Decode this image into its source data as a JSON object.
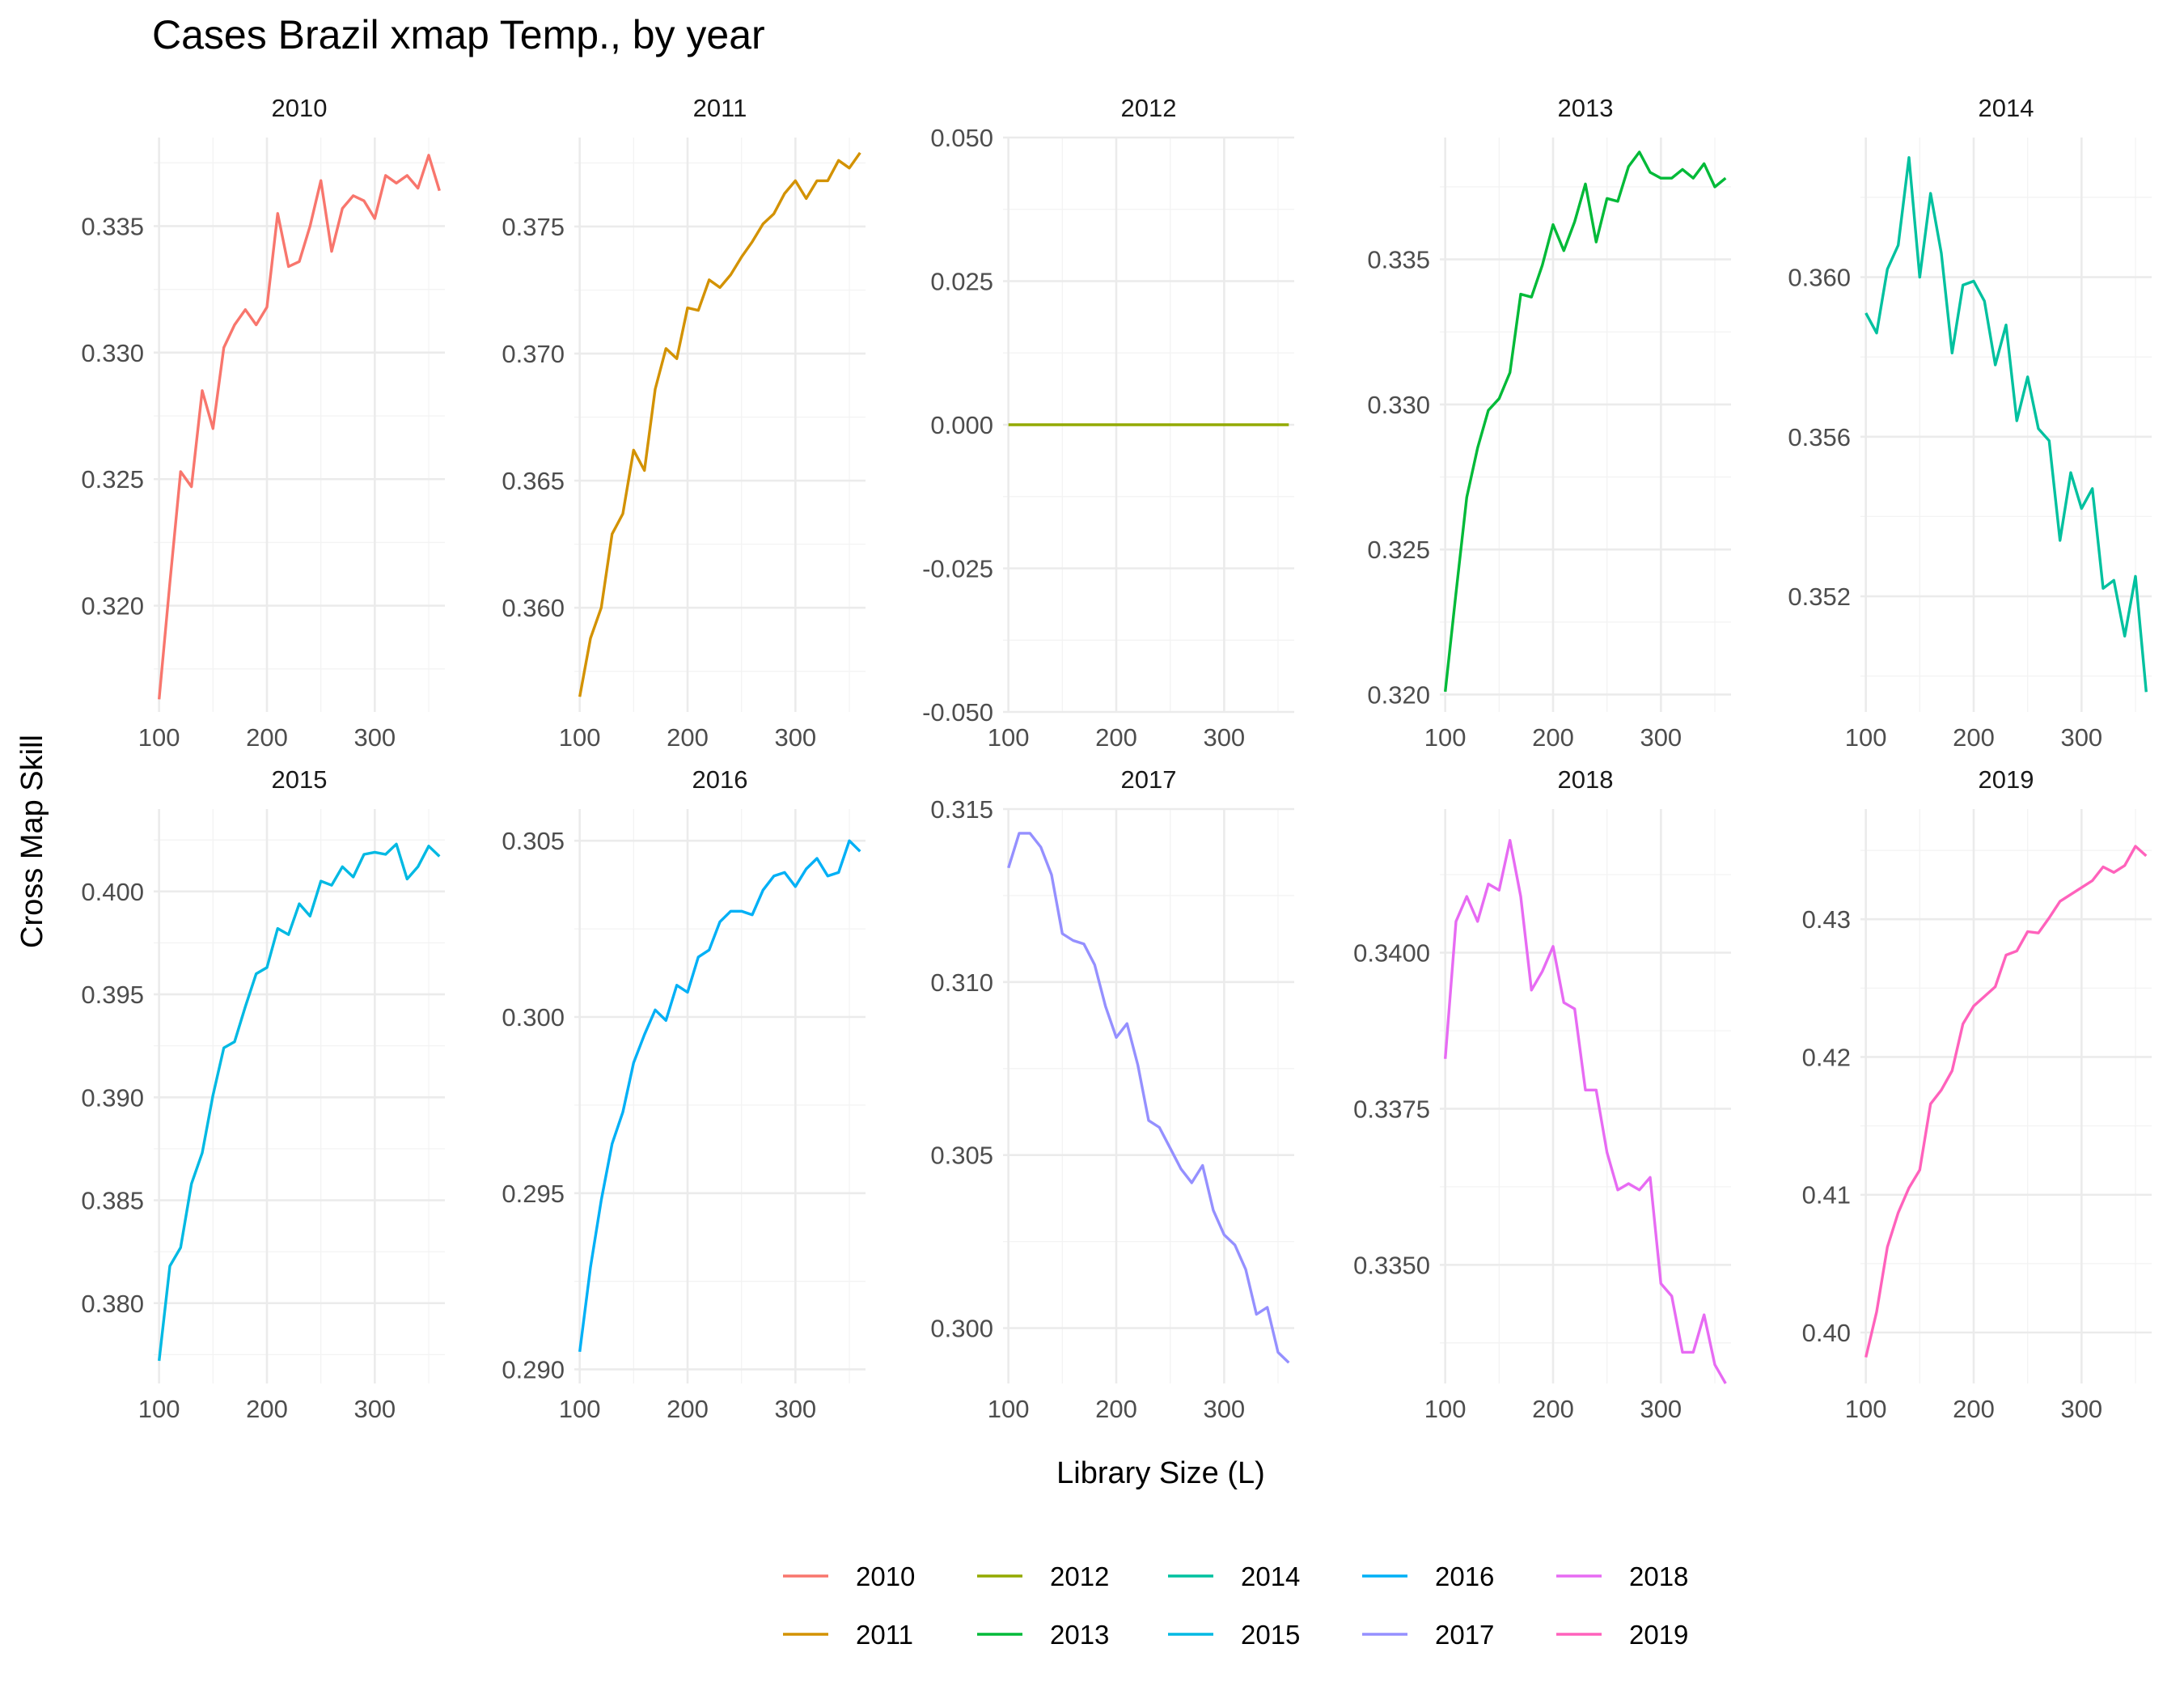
{
  "chart_data": {
    "type": "line",
    "title": "Cases Brazil xmap Temp., by year",
    "xlabel": "Library Size (L)",
    "ylabel": "Cross Map Skill",
    "facet_by": "year",
    "layout": "2 rows x 5 columns, free y scales",
    "grid": true,
    "legend_position": "bottom",
    "x_ticks": [
      100,
      200,
      300
    ],
    "xlim": [
      95,
      365
    ],
    "x": [
      100,
      110,
      120,
      130,
      140,
      150,
      160,
      170,
      180,
      190,
      200,
      210,
      220,
      230,
      240,
      250,
      260,
      270,
      280,
      290,
      300,
      310,
      320,
      330,
      340,
      350,
      360
    ],
    "panels": [
      {
        "name": "2010",
        "color": "#F8766D",
        "ylim": [
          0.3158,
          0.3385
        ],
        "yticks": [
          0.32,
          0.325,
          0.33,
          0.335
        ],
        "values": [
          0.3163,
          0.3209,
          0.3253,
          0.3247,
          0.3285,
          0.327,
          0.3302,
          0.3311,
          0.3317,
          0.3311,
          0.3318,
          0.3355,
          0.3334,
          0.3336,
          0.335,
          0.3368,
          0.334,
          0.3357,
          0.3362,
          0.336,
          0.3353,
          0.337,
          0.3367,
          0.337,
          0.3365,
          0.3378,
          0.3364
        ]
      },
      {
        "name": "2011",
        "color": "#D39200",
        "ylim": [
          0.3559,
          0.3785
        ],
        "yticks": [
          0.36,
          0.365,
          0.37,
          0.375
        ],
        "values": [
          0.3565,
          0.3588,
          0.36,
          0.3629,
          0.3637,
          0.3662,
          0.3654,
          0.3686,
          0.3702,
          0.3698,
          0.3718,
          0.3717,
          0.3729,
          0.3726,
          0.3731,
          0.3738,
          0.3744,
          0.3751,
          0.3755,
          0.3763,
          0.3768,
          0.3761,
          0.3768,
          0.3768,
          0.3776,
          0.3773,
          0.3779
        ]
      },
      {
        "name": "2012",
        "color": "#93AA00",
        "ylim": [
          -0.05,
          0.05
        ],
        "yticks": [
          -0.05,
          -0.025,
          0.0,
          0.025,
          0.05
        ],
        "values": [
          0,
          0,
          0,
          0,
          0,
          0,
          0,
          0,
          0,
          0,
          0,
          0,
          0,
          0,
          0,
          0,
          0,
          0,
          0,
          0,
          0,
          0,
          0,
          0,
          0,
          0,
          0
        ]
      },
      {
        "name": "2013",
        "color": "#00BA38",
        "ylim": [
          0.3194,
          0.3392
        ],
        "yticks": [
          0.32,
          0.325,
          0.33,
          0.335
        ],
        "values": [
          0.3201,
          0.3235,
          0.3268,
          0.3285,
          0.3298,
          0.3302,
          0.3311,
          0.3338,
          0.3337,
          0.3348,
          0.3362,
          0.3353,
          0.3363,
          0.3376,
          0.3356,
          0.3371,
          0.337,
          0.3382,
          0.3387,
          0.338,
          0.3378,
          0.3378,
          0.3381,
          0.3378,
          0.3383,
          0.3375,
          0.3378
        ]
      },
      {
        "name": "2014",
        "color": "#00C19F",
        "ylim": [
          0.3491,
          0.3635
        ],
        "yticks": [
          0.352,
          0.356,
          0.36
        ],
        "values": [
          0.3591,
          0.3586,
          0.3602,
          0.3608,
          0.363,
          0.36,
          0.3621,
          0.3606,
          0.3581,
          0.3598,
          0.3599,
          0.3594,
          0.3578,
          0.3588,
          0.3564,
          0.3575,
          0.3562,
          0.3559,
          0.3534,
          0.3551,
          0.3542,
          0.3547,
          0.3522,
          0.3524,
          0.351,
          0.3525,
          0.3496
        ]
      },
      {
        "name": "2015",
        "color": "#00B9E3",
        "ylim": [
          0.3761,
          0.404
        ],
        "yticks": [
          0.38,
          0.385,
          0.39,
          0.395,
          0.4
        ],
        "values": [
          0.3772,
          0.3818,
          0.3827,
          0.3858,
          0.3873,
          0.3901,
          0.3924,
          0.3927,
          0.3944,
          0.396,
          0.3963,
          0.3982,
          0.3979,
          0.3994,
          0.3988,
          0.4005,
          0.4003,
          0.4012,
          0.4007,
          0.4018,
          0.4019,
          0.4018,
          0.4023,
          0.4006,
          0.4012,
          0.4022,
          0.4017
        ]
      },
      {
        "name": "2016",
        "color": "#00B0F6",
        "ylim": [
          0.2896,
          0.3059
        ],
        "yticks": [
          0.29,
          0.295,
          0.3,
          0.305
        ],
        "values": [
          0.2905,
          0.2929,
          0.2948,
          0.2964,
          0.2973,
          0.2987,
          0.2995,
          0.3002,
          0.2999,
          0.3009,
          0.3007,
          0.3017,
          0.3019,
          0.3027,
          0.303,
          0.303,
          0.3029,
          0.3036,
          0.304,
          0.3041,
          0.3037,
          0.3042,
          0.3045,
          0.304,
          0.3041,
          0.305,
          0.3047
        ]
      },
      {
        "name": "2017",
        "color": "#9590FF",
        "ylim": [
          0.2984,
          0.315
        ],
        "yticks": [
          0.3,
          0.305,
          0.31,
          0.315
        ],
        "values": [
          0.3133,
          0.3143,
          0.3143,
          0.3139,
          0.3131,
          0.3114,
          0.3112,
          0.3111,
          0.3105,
          0.3093,
          0.3084,
          0.3088,
          0.3076,
          0.306,
          0.3058,
          0.3052,
          0.3046,
          0.3042,
          0.3047,
          0.3034,
          0.3027,
          0.3024,
          0.3017,
          0.3004,
          0.3006,
          0.2993,
          0.299
        ]
      },
      {
        "name": "2018",
        "color": "#E76BF3",
        "ylim": [
          0.3331,
          0.3423
        ],
        "yticks": [
          0.335,
          0.3375,
          0.34
        ],
        "values": [
          0.3383,
          0.3405,
          0.3409,
          0.3405,
          0.3411,
          0.341,
          0.3418,
          0.3409,
          0.3394,
          0.3397,
          0.3401,
          0.3392,
          0.3391,
          0.3378,
          0.3378,
          0.3368,
          0.3362,
          0.3363,
          0.3362,
          0.3364,
          0.3347,
          0.3345,
          0.3336,
          0.3336,
          0.3342,
          0.3334,
          0.3331
        ]
      },
      {
        "name": "2019",
        "color": "#FF62BC",
        "ylim": [
          0.3963,
          0.438
        ],
        "yticks": [
          0.4,
          0.41,
          0.42,
          0.43
        ],
        "values": [
          0.3982,
          0.4015,
          0.4062,
          0.4087,
          0.4105,
          0.4118,
          0.4166,
          0.4176,
          0.419,
          0.4224,
          0.4237,
          0.4244,
          0.4251,
          0.4274,
          0.4277,
          0.4291,
          0.429,
          0.4301,
          0.4313,
          0.4318,
          0.4323,
          0.4328,
          0.4338,
          0.4334,
          0.4339,
          0.4353,
          0.4346
        ]
      }
    ]
  }
}
